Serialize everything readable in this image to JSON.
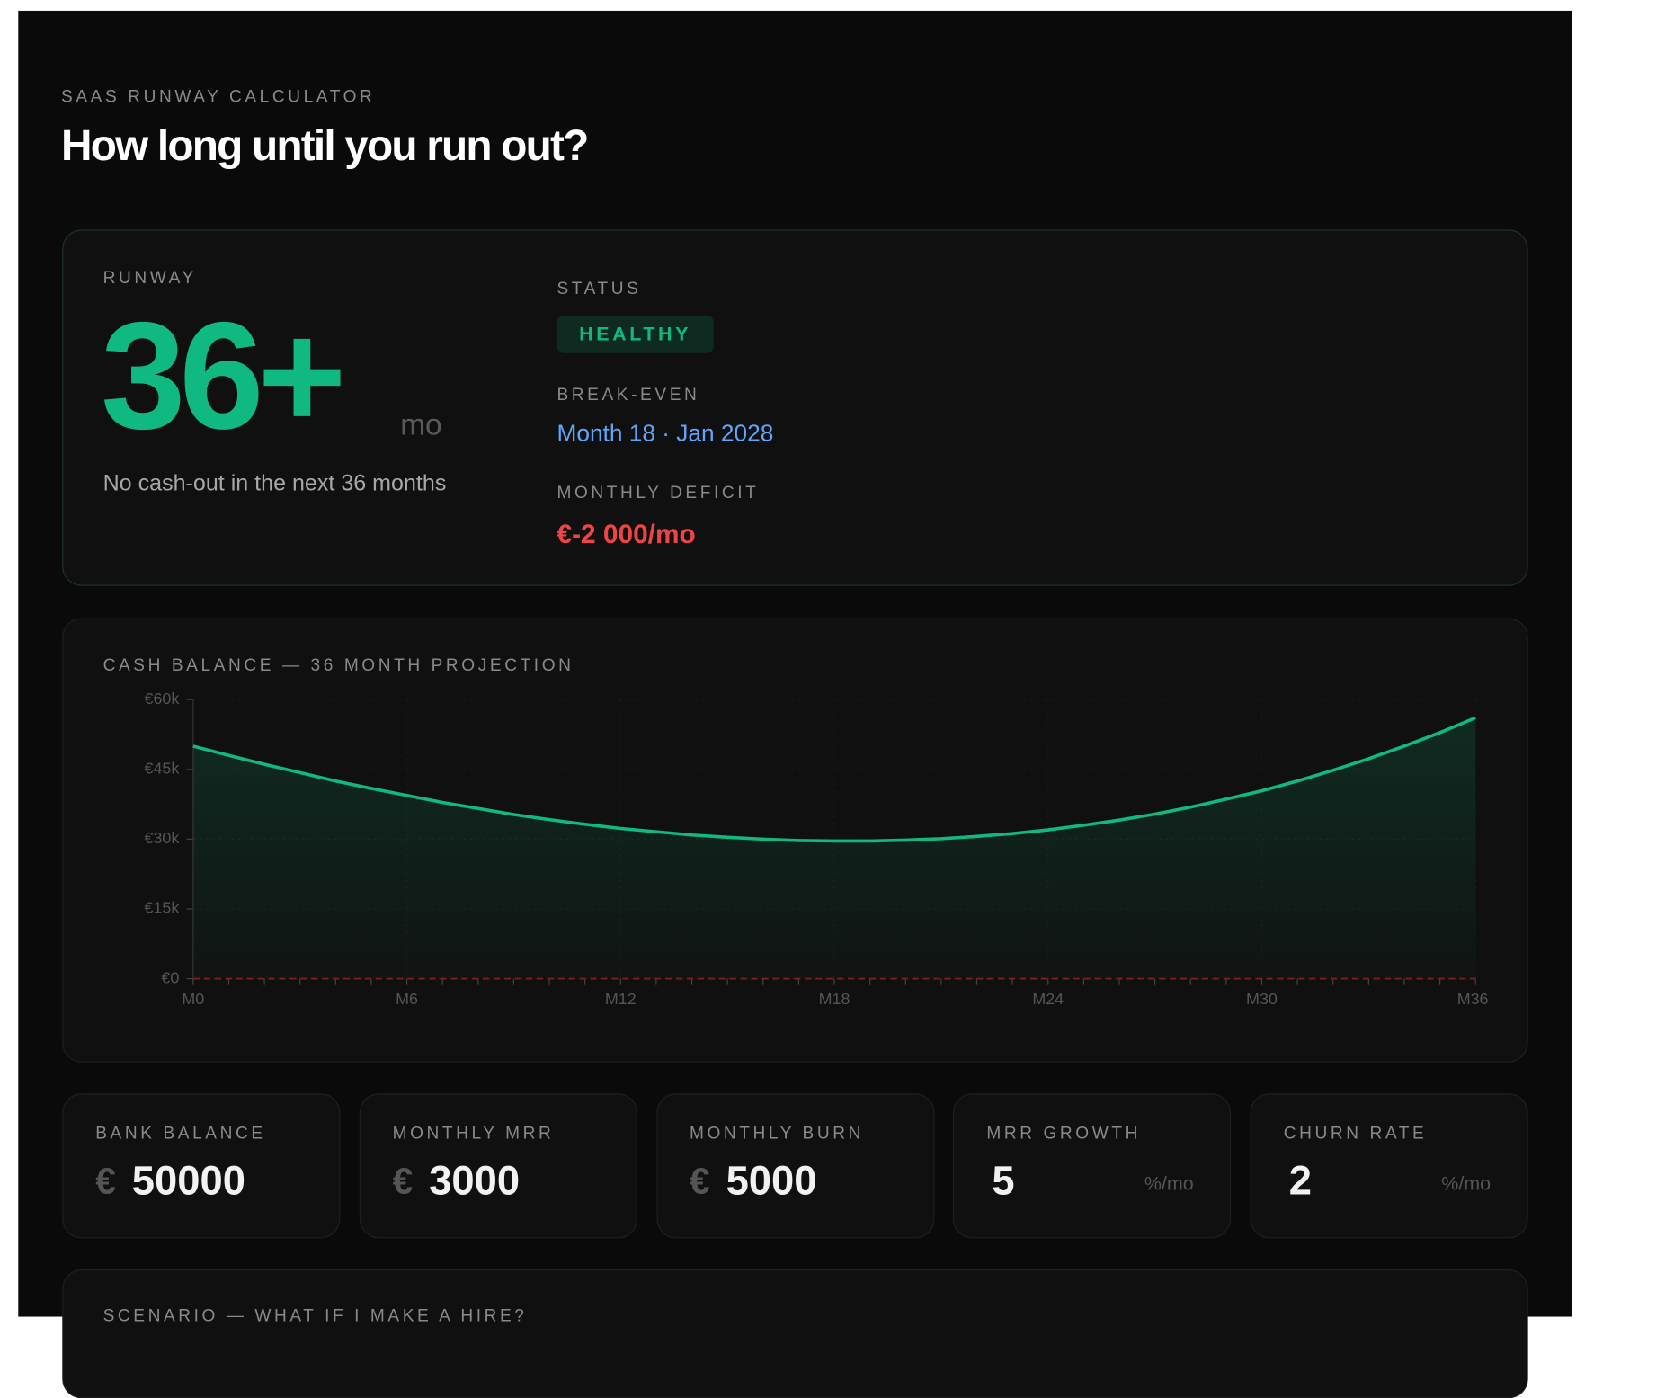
{
  "header": {
    "eyebrow": "SAAS RUNWAY CALCULATOR",
    "title": "How long until you run out?"
  },
  "summary": {
    "runway_label": "RUNWAY",
    "runway_value": "36+",
    "runway_unit": "mo",
    "runway_note": "No cash-out in the next 36 months",
    "status_label": "STATUS",
    "status_value": "HEALTHY",
    "breakeven_label": "BREAK-EVEN",
    "breakeven_value": "Month 18 · Jan 2028",
    "deficit_label": "MONTHLY DEFICIT",
    "deficit_value": "€-2 000/mo"
  },
  "chart_data": {
    "type": "line",
    "title": "CASH BALANCE — 36 MONTH PROJECTION",
    "x": [
      0,
      1,
      2,
      3,
      4,
      5,
      6,
      7,
      8,
      9,
      10,
      11,
      12,
      13,
      14,
      15,
      16,
      17,
      18,
      19,
      20,
      21,
      22,
      23,
      24,
      25,
      26,
      27,
      28,
      29,
      30,
      31,
      32,
      33,
      34,
      35,
      36
    ],
    "values": [
      50000,
      48000,
      46100,
      44300,
      42500,
      40900,
      39400,
      37900,
      36600,
      35300,
      34200,
      33200,
      32300,
      31600,
      30900,
      30400,
      30000,
      29700,
      29600,
      29600,
      29800,
      30100,
      30600,
      31200,
      32000,
      33000,
      34100,
      35400,
      36900,
      38600,
      40400,
      42500,
      44800,
      47300,
      50000,
      52900,
      56100
    ],
    "color": "#10b981",
    "xlim": [
      0,
      36
    ],
    "xticks": [
      {
        "value": 0,
        "label": "M0"
      },
      {
        "value": 6,
        "label": "M6"
      },
      {
        "value": 12,
        "label": "M12"
      },
      {
        "value": 18,
        "label": "M18"
      },
      {
        "value": 24,
        "label": "M24"
      },
      {
        "value": 30,
        "label": "M30"
      },
      {
        "value": 36,
        "label": "M36"
      }
    ],
    "ylim": [
      0,
      60000
    ],
    "yticks": [
      {
        "value": 0,
        "label": "€0"
      },
      {
        "value": 15000,
        "label": "€15k"
      },
      {
        "value": 30000,
        "label": "€30k"
      },
      {
        "value": 45000,
        "label": "€45k"
      },
      {
        "value": 60000,
        "label": "€60k"
      }
    ],
    "grid": true
  },
  "inputs": [
    {
      "label": "BANK BALANCE",
      "prefix": "€",
      "value": 50000
    },
    {
      "label": "MONTHLY MRR",
      "prefix": "€",
      "value": 3000
    },
    {
      "label": "MONTHLY BURN",
      "prefix": "€",
      "value": 5000
    },
    {
      "label": "MRR GROWTH",
      "value": 5,
      "suffix": "%/mo"
    },
    {
      "label": "CHURN RATE",
      "value": 2,
      "suffix": "%/mo"
    }
  ],
  "scenario": {
    "title": "SCENARIO — WHAT IF I MAKE A HIRE?"
  }
}
